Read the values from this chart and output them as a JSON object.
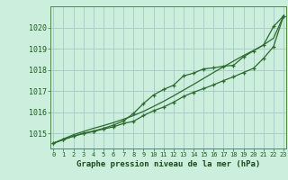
{
  "title": "Graphe pression niveau de la mer (hPa)",
  "background_color": "#cceedd",
  "grid_color": "#aacccc",
  "line_color": "#2d6a2d",
  "x_labels": [
    "0",
    "1",
    "2",
    "3",
    "4",
    "5",
    "6",
    "7",
    "8",
    "9",
    "10",
    "11",
    "12",
    "13",
    "14",
    "15",
    "16",
    "17",
    "18",
    "19",
    "20",
    "21",
    "22",
    "23"
  ],
  "ylim": [
    1014.3,
    1021.0
  ],
  "yticks": [
    1015,
    1016,
    1017,
    1018,
    1019,
    1020
  ],
  "line1_smooth": [
    1014.55,
    1014.75,
    1014.95,
    1015.1,
    1015.25,
    1015.38,
    1015.52,
    1015.68,
    1015.85,
    1016.05,
    1016.28,
    1016.52,
    1016.78,
    1017.05,
    1017.32,
    1017.6,
    1017.88,
    1018.15,
    1018.42,
    1018.68,
    1018.92,
    1019.18,
    1019.5,
    1020.55
  ],
  "line2_markers": [
    1014.55,
    1014.72,
    1014.88,
    1015.0,
    1015.1,
    1015.22,
    1015.32,
    1015.48,
    1015.58,
    1015.85,
    1016.08,
    1016.25,
    1016.48,
    1016.75,
    1016.95,
    1017.12,
    1017.3,
    1017.5,
    1017.68,
    1017.88,
    1018.08,
    1018.55,
    1019.1,
    1020.55
  ],
  "line3_markers": [
    1014.55,
    1014.72,
    1014.88,
    1015.02,
    1015.12,
    1015.25,
    1015.4,
    1015.6,
    1015.95,
    1016.42,
    1016.82,
    1017.08,
    1017.28,
    1017.72,
    1017.85,
    1018.05,
    1018.1,
    1018.18,
    1018.22,
    1018.62,
    1018.9,
    1019.18,
    1020.05,
    1020.55
  ]
}
